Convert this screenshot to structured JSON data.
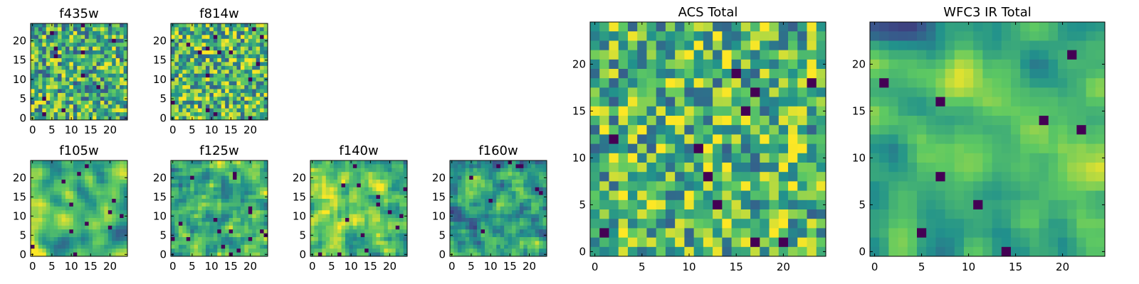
{
  "chart_data": [
    {
      "type": "heatmap",
      "title": "f435w",
      "xticks": [
        "0",
        "5",
        "10",
        "15",
        "20"
      ],
      "yticks": [
        "0",
        "5",
        "10",
        "15",
        "20"
      ],
      "seed": 11,
      "smooth": 0,
      "brightness": 0.0,
      "range": [
        0,
        24
      ]
    },
    {
      "type": "heatmap",
      "title": "f814w",
      "xticks": [
        "0",
        "5",
        "10",
        "15",
        "20"
      ],
      "yticks": [
        "0",
        "5",
        "10",
        "15",
        "20"
      ],
      "seed": 23,
      "smooth": 0,
      "brightness": 0.05,
      "range": [
        0,
        24
      ]
    },
    {
      "type": "heatmap",
      "title": "f105w",
      "xticks": [
        "0",
        "5",
        "10",
        "15",
        "20"
      ],
      "yticks": [
        "0",
        "5",
        "10",
        "15",
        "20"
      ],
      "seed": 37,
      "smooth": 2,
      "brightness": 0.05,
      "range": [
        0,
        24
      ]
    },
    {
      "type": "heatmap",
      "title": "f125w",
      "xticks": [
        "0",
        "5",
        "10",
        "15",
        "20"
      ],
      "yticks": [
        "0",
        "5",
        "10",
        "15",
        "20"
      ],
      "seed": 41,
      "smooth": 1,
      "brightness": 0.05,
      "range": [
        0,
        24
      ]
    },
    {
      "type": "heatmap",
      "title": "f140w",
      "xticks": [
        "0",
        "5",
        "10",
        "15",
        "20"
      ],
      "yticks": [
        "0",
        "5",
        "10",
        "15",
        "20"
      ],
      "seed": 53,
      "smooth": 1,
      "brightness": 0.08,
      "range": [
        0,
        24
      ]
    },
    {
      "type": "heatmap",
      "title": "f160w",
      "xticks": [
        "0",
        "5",
        "10",
        "15",
        "20"
      ],
      "yticks": [
        "0",
        "5",
        "10",
        "15",
        "20"
      ],
      "seed": 67,
      "smooth": 1,
      "brightness": -0.08,
      "range": [
        0,
        24
      ]
    },
    {
      "type": "heatmap",
      "title": "ACS Total",
      "xticks": [
        "0",
        "5",
        "10",
        "15",
        "20"
      ],
      "yticks": [
        "0",
        "5",
        "10",
        "15",
        "20"
      ],
      "seed": 79,
      "smooth": 0,
      "brightness": 0.05,
      "range": [
        0,
        24
      ]
    },
    {
      "type": "heatmap",
      "title": "WFC3 IR Total",
      "xticks": [
        "0",
        "5",
        "10",
        "15",
        "20"
      ],
      "yticks": [
        "0",
        "5",
        "10",
        "15",
        "20"
      ],
      "seed": 97,
      "smooth": 2,
      "brightness": -0.05,
      "range": [
        0,
        24
      ]
    }
  ],
  "colormap": [
    "#440154",
    "#3b528b",
    "#21918c",
    "#5ec962",
    "#fde725"
  ]
}
